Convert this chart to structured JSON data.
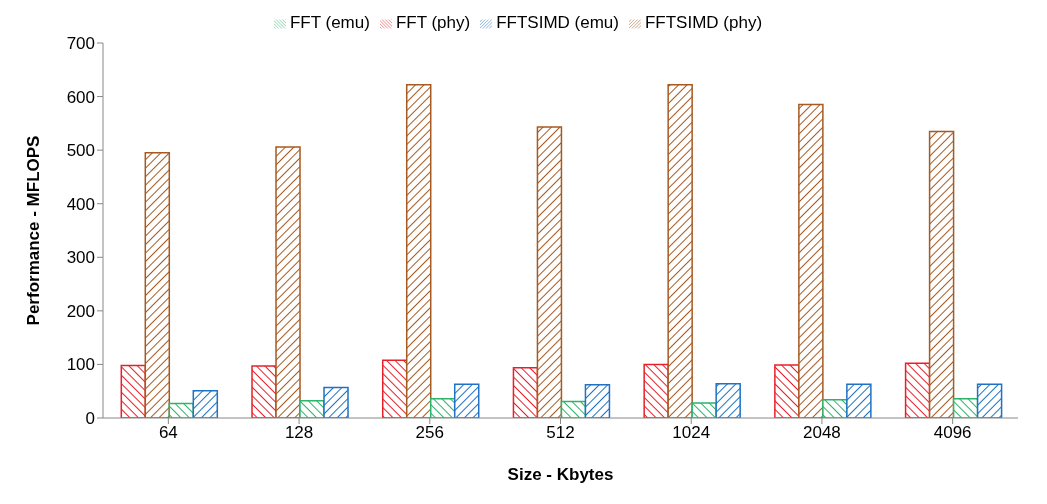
{
  "chart_data": {
    "type": "bar",
    "xlabel": "Size - Kbytes",
    "ylabel": "Performance - MFLOPS",
    "categories": [
      "64",
      "128",
      "256",
      "512",
      "1024",
      "2048",
      "4096"
    ],
    "series": [
      {
        "name": "FFT (phy)",
        "color": "#e8202a",
        "values": [
          98,
          97,
          108,
          94,
          100,
          99,
          102
        ]
      },
      {
        "name": "FFTSIMD (phy)",
        "color": "#a65a22",
        "values": [
          495,
          506,
          622,
          543,
          622,
          585,
          535
        ]
      },
      {
        "name": "FFT (emu)",
        "color": "#2db36a",
        "values": [
          27,
          32,
          36,
          31,
          28,
          34,
          36
        ]
      },
      {
        "name": "FFTSIMD (emu)",
        "color": "#1f72c4",
        "values": [
          51,
          57,
          63,
          62,
          64,
          63,
          63
        ]
      }
    ],
    "ylim": [
      0,
      700
    ],
    "yticks": [
      0,
      100,
      200,
      300,
      400,
      500,
      600,
      700
    ],
    "grid": false,
    "legend": "top"
  }
}
